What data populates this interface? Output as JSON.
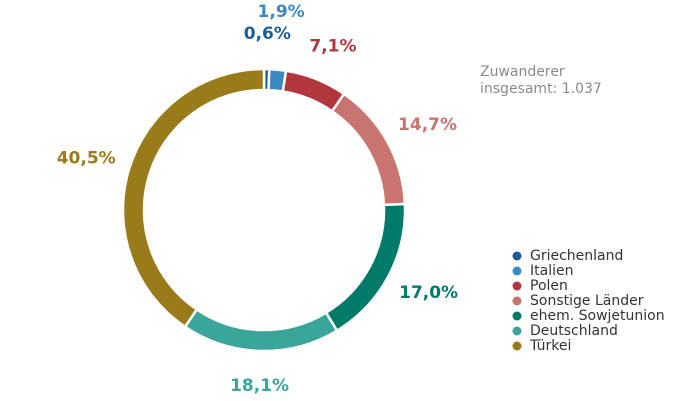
{
  "chart_data": {
    "type": "donut",
    "categories": [
      "Griechenland",
      "Italien",
      "Polen",
      "Sonstige Länder",
      "ehem. Sowjetunion",
      "Deutschland",
      "Türkei"
    ],
    "values": [
      0.6,
      1.9,
      7.1,
      14.7,
      17.0,
      18.1,
      40.5
    ],
    "value_labels": [
      "0,6%",
      "1,9%",
      "7,1%",
      "14,7%",
      "17,0%",
      "18,1%",
      "40,5%"
    ],
    "colors": [
      "#1b5e97",
      "#3b88c3",
      "#b2373d",
      "#c9746f",
      "#007a6b",
      "#3aa69b",
      "#9b7a1b"
    ],
    "annotation": [
      "Zuwanderer",
      "insgesamt: 1.037"
    ],
    "legend": "right"
  }
}
